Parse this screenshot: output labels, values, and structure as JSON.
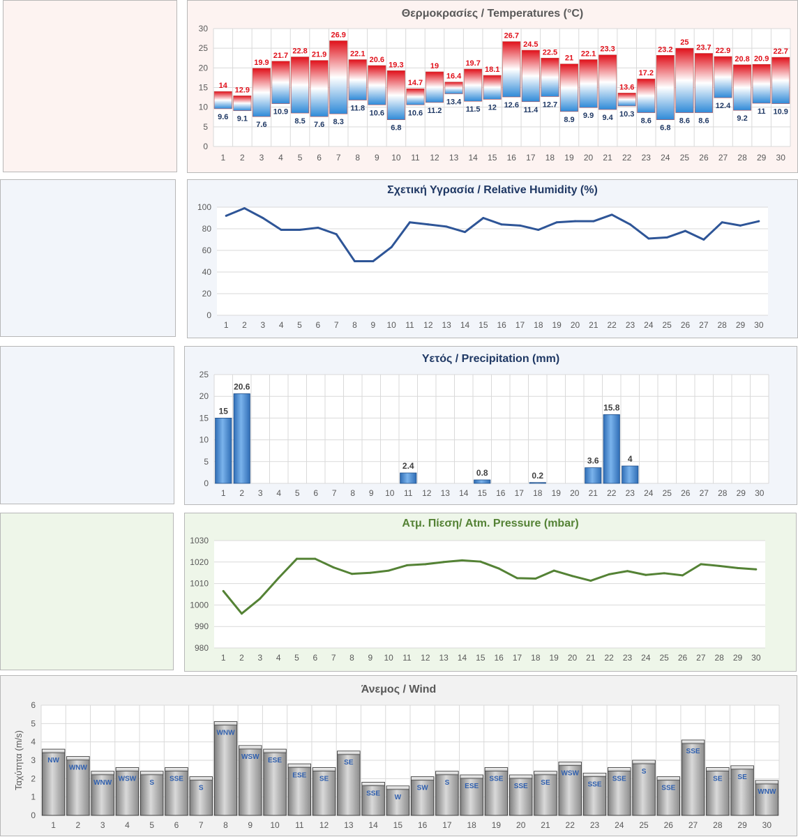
{
  "colors": {
    "temp_bg": "#fdf3f1",
    "hum_bg": "#f2f5fa",
    "prec_bg": "#f2f5fa",
    "pres_bg": "#eef6e9",
    "wind_bg": "#f2f2f2",
    "temp_max_label": "#e0101a",
    "temp_min_label": "#1f3864",
    "title_dark": "#1f3864",
    "hum_line": "#2e5597",
    "prec_bar": "#4f8fd6",
    "pres_line": "#548235",
    "pres_title": "#548235",
    "wind_bar": "#a6a6a6",
    "wind_label": "#2f5fae",
    "axis_text": "#595959",
    "grid": "#d9d9d9"
  },
  "chart_data": [
    {
      "id": "temperature",
      "type": "bar",
      "title": "Θερμοκρασίες / Temperatures (°C)",
      "categories": [
        "1",
        "2",
        "3",
        "4",
        "5",
        "6",
        "7",
        "8",
        "9",
        "10",
        "11",
        "12",
        "13",
        "14",
        "15",
        "16",
        "17",
        "18",
        "19",
        "20",
        "21",
        "22",
        "23",
        "24",
        "25",
        "26",
        "27",
        "28",
        "29",
        "30"
      ],
      "series": [
        {
          "name": "",
          "values": [
            14,
            12.9,
            19.9,
            21.7,
            22.8,
            21.9,
            26.9,
            22.1,
            20.6,
            19.3,
            14.7,
            19,
            16.4,
            19.7,
            18.1,
            26.7,
            24.5,
            22.5,
            21,
            22.1,
            23.3,
            13.6,
            17.2,
            23.2,
            25,
            23.7,
            22.9,
            20.8,
            20.9,
            22.7
          ]
        },
        {
          "name": "",
          "values": [
            9.6,
            9.1,
            7.6,
            10.9,
            8.5,
            7.6,
            8.3,
            11.8,
            10.6,
            6.8,
            10.6,
            11.2,
            13.4,
            11.5,
            12,
            12.6,
            11.4,
            12.7,
            8.9,
            9.9,
            9.4,
            10.3,
            8.6,
            6.8,
            8.6,
            8.6,
            12.4,
            9.2,
            11,
            10.9
          ]
        }
      ],
      "ylim": [
        0,
        30
      ],
      "yticks": [
        0,
        5,
        10,
        15,
        20,
        25,
        30
      ]
    },
    {
      "id": "humidity",
      "type": "line",
      "title": "Σχετική Υγρασία / Relative Humidity (%)",
      "categories": [
        "1",
        "2",
        "3",
        "4",
        "5",
        "6",
        "7",
        "8",
        "9",
        "10",
        "11",
        "12",
        "13",
        "14",
        "15",
        "16",
        "17",
        "18",
        "19",
        "20",
        "21",
        "22",
        "23",
        "24",
        "25",
        "26",
        "27",
        "28",
        "29",
        "30"
      ],
      "values": [
        92,
        99,
        90,
        79,
        79,
        81,
        75,
        50,
        50,
        63,
        86,
        84,
        82,
        77,
        90,
        84,
        83,
        79,
        86,
        87,
        87,
        93,
        84,
        71,
        72,
        78,
        70,
        86,
        83,
        87
      ],
      "ylim": [
        0,
        100
      ],
      "yticks": [
        0,
        20,
        40,
        60,
        80,
        100
      ]
    },
    {
      "id": "precipitation",
      "type": "bar",
      "title": "Υετός / Precipitation (mm)",
      "categories": [
        "1",
        "2",
        "3",
        "4",
        "5",
        "6",
        "7",
        "8",
        "9",
        "10",
        "11",
        "12",
        "13",
        "14",
        "15",
        "16",
        "17",
        "18",
        "19",
        "20",
        "21",
        "22",
        "23",
        "24",
        "25",
        "26",
        "27",
        "28",
        "29",
        "30"
      ],
      "values": [
        15,
        20.6,
        0,
        0,
        0,
        0,
        0,
        0,
        0,
        0,
        2.4,
        0,
        0,
        0,
        0.8,
        0,
        0,
        0.2,
        0,
        0,
        3.6,
        15.8,
        4,
        0,
        0,
        0,
        0,
        0,
        0,
        0
      ],
      "ylim": [
        0,
        25
      ],
      "yticks": [
        0,
        5,
        10,
        15,
        20,
        25
      ]
    },
    {
      "id": "pressure",
      "type": "line",
      "title": "Ατμ. Πίεση/ Atm. Pressure (mbar)",
      "categories": [
        "1",
        "2",
        "3",
        "4",
        "5",
        "6",
        "7",
        "8",
        "9",
        "10",
        "11",
        "12",
        "13",
        "14",
        "15",
        "16",
        "17",
        "18",
        "19",
        "20",
        "21",
        "22",
        "23",
        "24",
        "25",
        "26",
        "27",
        "28",
        "29",
        "30"
      ],
      "values": [
        1006.5,
        996,
        1003,
        1012.5,
        1021.5,
        1021.5,
        1017.5,
        1014.5,
        1015,
        1016,
        1018.5,
        1019,
        1020,
        1020.8,
        1020.2,
        1017,
        1012.5,
        1012.3,
        1016,
        1013.5,
        1011.3,
        1014.3,
        1015.8,
        1014,
        1014.8,
        1013.8,
        1019,
        1018.2,
        1017.2,
        1016.6
      ],
      "ylim": [
        980,
        1030
      ],
      "yticks": [
        980,
        990,
        1000,
        1010,
        1020,
        1030
      ]
    },
    {
      "id": "wind",
      "type": "bar",
      "title": "Άνεμος / Wind",
      "ylabel": "Ταχύτητα (m/s)",
      "categories": [
        "1",
        "2",
        "3",
        "4",
        "5",
        "6",
        "7",
        "8",
        "9",
        "10",
        "11",
        "12",
        "13",
        "14",
        "15",
        "16",
        "17",
        "18",
        "19",
        "20",
        "21",
        "22",
        "23",
        "24",
        "25",
        "26",
        "27",
        "28",
        "29",
        "30"
      ],
      "values": [
        3.6,
        3.2,
        2.4,
        2.6,
        2.4,
        2.6,
        2.1,
        5.1,
        3.8,
        3.6,
        2.8,
        2.6,
        3.5,
        1.8,
        1.6,
        2.1,
        2.4,
        2.2,
        2.6,
        2.2,
        2.4,
        2.9,
        2.3,
        2.6,
        3.0,
        2.1,
        4.1,
        2.6,
        2.7,
        1.9
      ],
      "directions": [
        "NW",
        "WNW",
        "WNW",
        "WSW",
        "S",
        "SSE",
        "S",
        "WNW",
        "WSW",
        "ESE",
        "ESE",
        "SE",
        "SE",
        "SSE",
        "W",
        "SW",
        "S",
        "ESE",
        "SSE",
        "SSE",
        "SE",
        "WSW",
        "SSE",
        "SSE",
        "S",
        "SSE",
        "SSE",
        "SE",
        "SE",
        "WNW"
      ],
      "ylim": [
        0,
        6
      ],
      "yticks": [
        0,
        1,
        2,
        3,
        4,
        5,
        6
      ]
    }
  ]
}
